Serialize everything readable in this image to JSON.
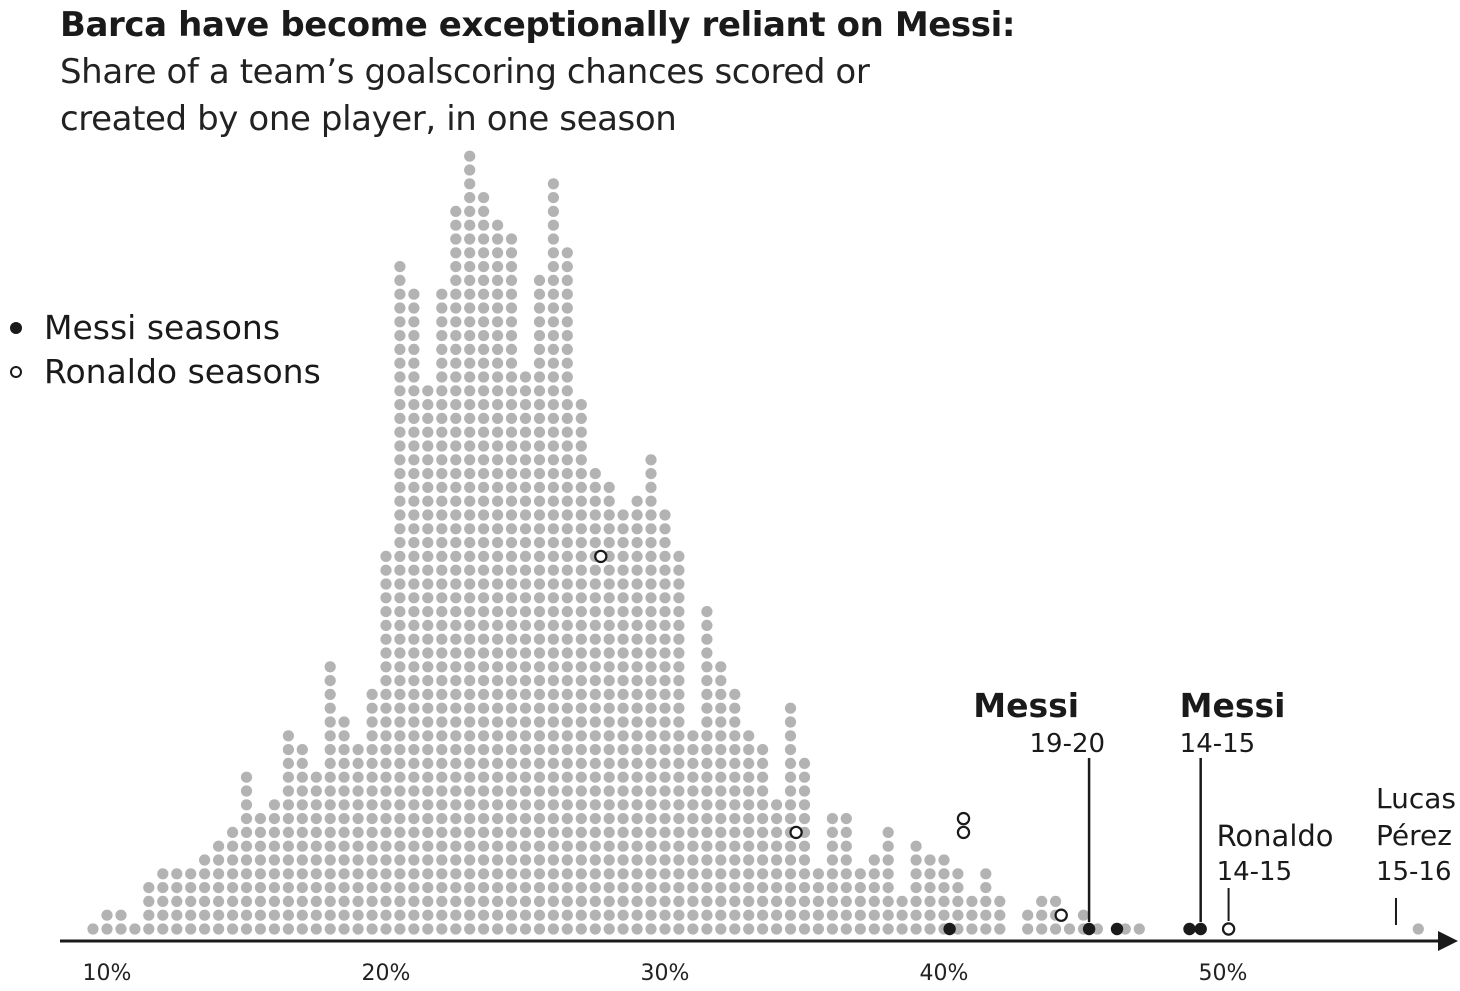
{
  "title": "Barca have become exceptionally reliant on Messi:",
  "subtitle_line1": "Share of a team’s goalscoring chances scored or",
  "subtitle_line2": "created by one player, in one season",
  "legend": [
    {
      "label": "Messi seasons",
      "style": "filled"
    },
    {
      "label": "Ronaldo seasons",
      "style": "hollow"
    }
  ],
  "colors": {
    "dots": "#b3b3b3",
    "ink": "#1a1a1a"
  },
  "chart_data": {
    "type": "scatter",
    "subtype": "dot-histogram",
    "xlim": [
      8.5,
      58.5
    ],
    "x_ticks": [
      "10%",
      "20%",
      "30%",
      "40%",
      "50%"
    ],
    "x_tick_values": [
      10,
      20,
      30,
      40,
      50
    ],
    "bin_width": 0.5,
    "bin_start": 9.5,
    "counts": [
      1,
      2,
      2,
      1,
      4,
      5,
      5,
      5,
      6,
      7,
      8,
      12,
      9,
      10,
      15,
      14,
      12,
      20,
      16,
      14,
      18,
      28,
      49,
      47,
      40,
      47,
      53,
      57,
      54,
      52,
      51,
      41,
      48,
      55,
      50,
      39,
      34,
      33,
      31,
      32,
      35,
      31,
      28,
      15,
      24,
      20,
      18,
      15,
      14,
      10,
      17,
      13,
      5,
      9,
      9,
      5,
      6,
      8,
      3,
      7,
      6,
      6,
      5,
      3,
      5,
      3,
      0,
      2,
      3,
      3,
      1,
      2,
      1,
      0,
      1,
      1,
      0,
      0,
      0,
      0,
      0,
      0,
      0,
      0,
      0,
      0,
      0,
      0,
      0,
      0,
      0,
      0,
      0,
      0,
      0,
      1
    ],
    "messi_seasons": [
      {
        "x": 40.2,
        "level": 0
      },
      {
        "x": 45.2,
        "level": 0
      },
      {
        "x": 46.2,
        "level": 0
      },
      {
        "x": 48.8,
        "level": 0
      },
      {
        "x": 49.2,
        "level": 0
      }
    ],
    "ronaldo_seasons": [
      {
        "x": 27.7,
        "level": 27
      },
      {
        "x": 34.7,
        "level": 7
      },
      {
        "x": 40.7,
        "level": 7
      },
      {
        "x": 40.7,
        "level": 8
      },
      {
        "x": 44.2,
        "level": 1
      },
      {
        "x": 50.2,
        "level": 0
      }
    ],
    "annotations": [
      {
        "name": "messi-19-20",
        "line1": "Messi",
        "line2": "19-20",
        "x": 45.2
      },
      {
        "name": "messi-14-15",
        "line1": "Messi",
        "line2": "14-15",
        "x": 49.2
      },
      {
        "name": "ronaldo-14-15",
        "line1": "Ronaldo",
        "line2": "14-15",
        "x": 50.2
      },
      {
        "name": "lucas-perez-15-16",
        "line1": "Lucas",
        "line2": "Pérez",
        "line3": "15-16",
        "x": 56.2
      }
    ]
  }
}
